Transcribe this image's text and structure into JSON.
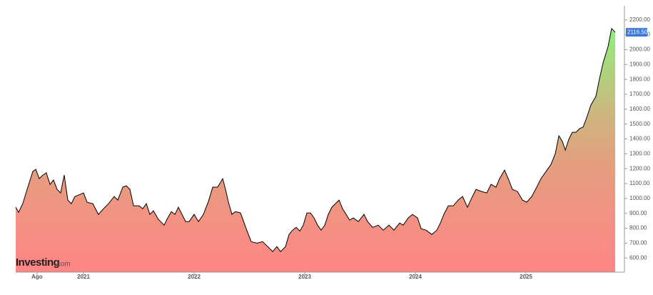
{
  "chart_data": {
    "type": "area",
    "x": [
      2020.387,
      2020.413,
      2020.451,
      2020.49,
      2020.542,
      2020.568,
      2020.6,
      2020.632,
      2020.664,
      2020.697,
      2020.729,
      2020.761,
      2020.793,
      2020.826,
      2020.858,
      2020.89,
      2020.922,
      2020.968,
      2021.0,
      2021.032,
      2021.084,
      2021.135,
      2021.181,
      2021.226,
      2021.277,
      2021.31,
      2021.355,
      2021.387,
      2021.419,
      2021.452,
      2021.503,
      2021.535,
      2021.568,
      2021.6,
      2021.632,
      2021.677,
      2021.729,
      2021.761,
      2021.794,
      2021.826,
      2021.858,
      2021.89,
      2021.923,
      2021.955,
      2022.0,
      2022.039,
      2022.084,
      2022.129,
      2022.168,
      2022.213,
      2022.258,
      2022.284,
      2022.31,
      2022.342,
      2022.374,
      2022.419,
      2022.471,
      2022.516,
      2022.568,
      2022.619,
      2022.665,
      2022.71,
      2022.748,
      2022.781,
      2022.826,
      2022.858,
      2022.89,
      2022.923,
      2022.955,
      2022.987,
      2023.019,
      2023.052,
      2023.084,
      2023.116,
      2023.148,
      2023.181,
      2023.213,
      2023.245,
      2023.277,
      2023.31,
      2023.342,
      2023.374,
      2023.406,
      2023.439,
      2023.484,
      2023.535,
      2023.568,
      2023.613,
      2023.665,
      2023.71,
      2023.761,
      2023.806,
      2023.858,
      2023.89,
      2023.935,
      2023.974,
      2024.019,
      2024.052,
      2024.097,
      2024.148,
      2024.194,
      2024.226,
      2024.258,
      2024.297,
      2024.342,
      2024.387,
      2024.426,
      2024.471,
      2024.516,
      2024.548,
      2024.6,
      2024.645,
      2024.684,
      2024.729,
      2024.761,
      2024.806,
      2024.839,
      2024.877,
      2024.923,
      2024.968,
      2025.006,
      2025.052,
      2025.097,
      2025.135,
      2025.181,
      2025.226,
      2025.265,
      2025.297,
      2025.329,
      2025.355,
      2025.387,
      2025.419,
      2025.452,
      2025.484,
      2025.516,
      2025.548,
      2025.587,
      2025.632,
      2025.665,
      2025.697,
      2025.742,
      2025.774,
      2025.806
    ],
    "series": [
      {
        "color": "#000000",
        "values": [
          941,
          907,
          965,
          1061,
          1181,
          1196,
          1133,
          1157,
          1172,
          1095,
          1124,
          1061,
          1037,
          1157,
          989,
          965,
          1013,
          1027,
          1037,
          975,
          965,
          893,
          931,
          965,
          1013,
          989,
          1076,
          1085,
          1061,
          951,
          951,
          931,
          965,
          893,
          917,
          859,
          821,
          869,
          912,
          893,
          941,
          893,
          845,
          845,
          893,
          845,
          893,
          979,
          1076,
          1076,
          1133,
          1061,
          975,
          893,
          912,
          903,
          797,
          710,
          700,
          710,
          677,
          643,
          677,
          643,
          677,
          758,
          787,
          806,
          782,
          821,
          903,
          903,
          869,
          821,
          787,
          821,
          893,
          941,
          965,
          989,
          931,
          893,
          855,
          869,
          845,
          893,
          845,
          806,
          821,
          787,
          821,
          787,
          835,
          821,
          869,
          893,
          869,
          797,
          787,
          758,
          787,
          835,
          893,
          951,
          951,
          989,
          1013,
          941,
          1013,
          1061,
          1047,
          1037,
          1095,
          1076,
          1133,
          1191,
          1133,
          1061,
          1047,
          989,
          975,
          1013,
          1076,
          1133,
          1181,
          1229,
          1301,
          1421,
          1383,
          1325,
          1397,
          1445,
          1445,
          1469,
          1479,
          1542,
          1628,
          1686,
          1806,
          1912,
          2022,
          2142,
          2116.5
        ],
        "value_labels": [
          null,
          null,
          null,
          null,
          null,
          null,
          null,
          null,
          null,
          null,
          null,
          null,
          null,
          null,
          null,
          null,
          null,
          null,
          null,
          null,
          null,
          null,
          null,
          null,
          null,
          null,
          null,
          null,
          null,
          null,
          null,
          null,
          null,
          null,
          null,
          null,
          null,
          null,
          null,
          null,
          null,
          null,
          null,
          null,
          null,
          null,
          null,
          null,
          null,
          null,
          null,
          null,
          null,
          null,
          null,
          null,
          null,
          null,
          null,
          null,
          null,
          null,
          null,
          null,
          null,
          null,
          null,
          null,
          null,
          null,
          null,
          null,
          null,
          null,
          null,
          null,
          null,
          null,
          null,
          null,
          null,
          null,
          null,
          null,
          null,
          null,
          null,
          null,
          null,
          null,
          null,
          null,
          null,
          null,
          null,
          null,
          null,
          null,
          null,
          null,
          null,
          null,
          null,
          null,
          null,
          null,
          null,
          null,
          null,
          null,
          null,
          null,
          null,
          null,
          null,
          null,
          null,
          null,
          null,
          null,
          null,
          null,
          null,
          null,
          null,
          null,
          null,
          null,
          null,
          null,
          null,
          null,
          null,
          null,
          null,
          null,
          null,
          null,
          null,
          null,
          null,
          null,
          "2116.50"
        ]
      }
    ],
    "xlim": [
      2020.387,
      2025.89
    ],
    "xticks": [
      {
        "value": 2020.58,
        "label": "Ago"
      },
      2021,
      2022,
      2023,
      2024,
      2025
    ],
    "ylim": [
      505,
      2295
    ],
    "yticks": [
      {
        "value": 600,
        "label": "600.00"
      },
      {
        "value": 700,
        "label": "700.00"
      },
      {
        "value": 800,
        "label": "800.00"
      },
      {
        "value": 900,
        "label": "900.00"
      },
      {
        "value": 1000,
        "label": "1000.00"
      },
      {
        "value": 1100,
        "label": "1100.00"
      },
      {
        "value": 1200,
        "label": "1200.00"
      },
      {
        "value": 1300,
        "label": "1300.00"
      },
      {
        "value": 1400,
        "label": "1400.00"
      },
      {
        "value": 1500,
        "label": "1500.00"
      },
      {
        "value": 1600,
        "label": "1600.00"
      },
      {
        "value": 1700,
        "label": "1700.00"
      },
      {
        "value": 1800,
        "label": "1800.00"
      },
      {
        "value": 1900,
        "label": "1900.00"
      },
      {
        "value": 2000,
        "label": "2000.00"
      },
      {
        "value": 2100,
        "label": "2100.00"
      },
      {
        "value": 2200,
        "label": "2200.00"
      }
    ],
    "grid": false,
    "watermark": {
      "brand": "Investing",
      "suffix": ".com"
    }
  }
}
